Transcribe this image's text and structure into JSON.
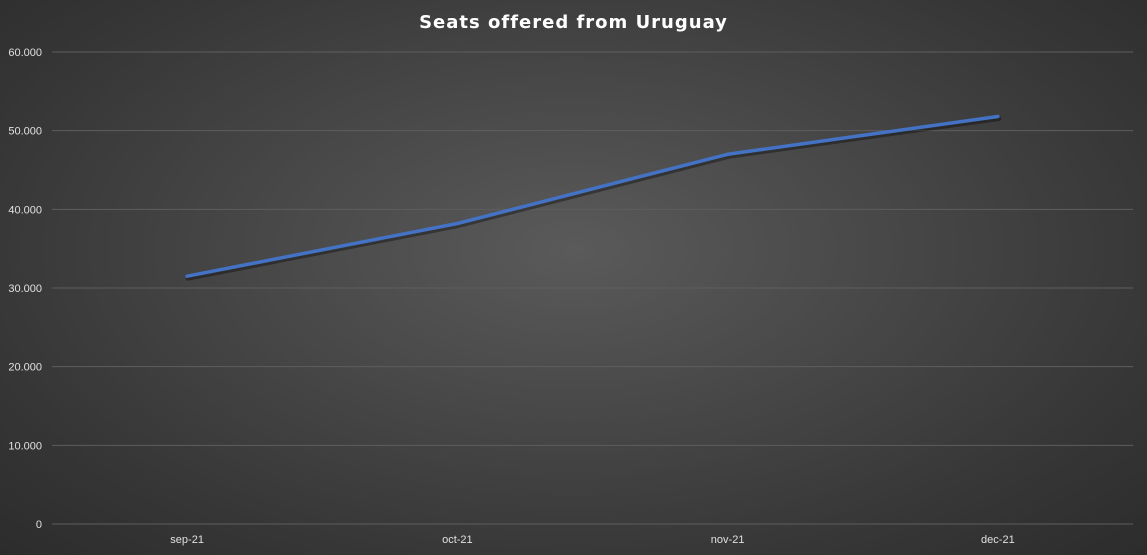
{
  "chart_data": {
    "type": "line",
    "title": "Seats offered from Uruguay",
    "categories": [
      "sep-21",
      "oct-21",
      "nov-21",
      "dec-21"
    ],
    "series": [
      {
        "values": [
          31500,
          38200,
          47000,
          51800
        ],
        "color": "#4472c4"
      }
    ],
    "ylim": [
      0,
      60000
    ],
    "yticks": [
      0,
      10000,
      20000,
      30000,
      40000,
      50000,
      60000
    ],
    "ytick_labels": [
      "0",
      "10.000",
      "20.000",
      "30.000",
      "40.000",
      "50.000",
      "60.000"
    ],
    "grid": true,
    "legend": "none",
    "gridline_color": "#5e5e5e"
  }
}
